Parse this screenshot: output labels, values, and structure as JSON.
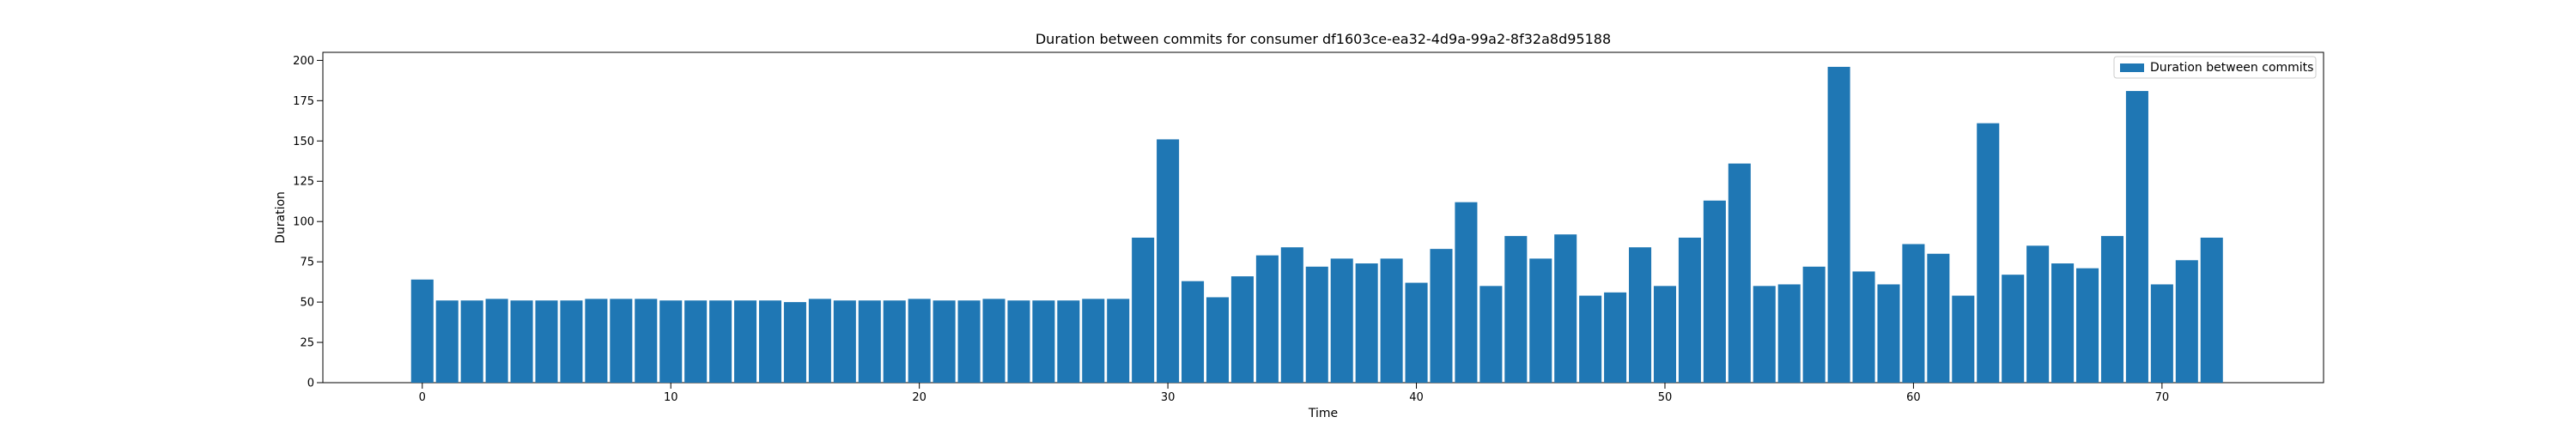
{
  "chart_data": {
    "type": "bar",
    "title": "Duration between commits for consumer df1603ce-ea32-4d9a-99a2-8f32a8d95188",
    "xlabel": "Time",
    "ylabel": "Duration",
    "xlim": [
      -4,
      76.5
    ],
    "ylim": [
      0,
      205
    ],
    "xticks": [
      0,
      10,
      20,
      30,
      40,
      50,
      60,
      70
    ],
    "yticks": [
      0,
      25,
      50,
      75,
      100,
      125,
      150,
      175,
      200
    ],
    "grid": false,
    "legend": {
      "placement": "top-right",
      "entries": [
        "Duration between commits"
      ]
    },
    "series": [
      {
        "name": "Duration between commits",
        "color": "#1f77b4",
        "x": [
          0,
          1,
          2,
          3,
          4,
          5,
          6,
          7,
          8,
          9,
          10,
          11,
          12,
          13,
          14,
          15,
          16,
          17,
          18,
          19,
          20,
          21,
          22,
          23,
          24,
          25,
          26,
          27,
          28,
          29,
          30,
          31,
          32,
          33,
          34,
          35,
          36,
          37,
          38,
          39,
          40,
          41,
          42,
          43,
          44,
          45,
          46,
          47,
          48,
          49,
          50,
          51,
          52,
          53,
          54,
          55,
          56,
          57,
          58,
          59,
          60,
          61,
          62,
          63,
          64,
          65,
          66,
          67,
          68,
          69,
          70,
          71,
          72
        ],
        "values": [
          64,
          51,
          51,
          52,
          51,
          51,
          51,
          52,
          52,
          52,
          51,
          51,
          51,
          51,
          51,
          50,
          52,
          51,
          51,
          51,
          52,
          51,
          51,
          52,
          51,
          51,
          51,
          52,
          52,
          90,
          151,
          63,
          53,
          66,
          79,
          84,
          72,
          77,
          74,
          77,
          62,
          83,
          112,
          60,
          91,
          77,
          92,
          54,
          56,
          84,
          60,
          90,
          113,
          136,
          60,
          61,
          72,
          196,
          69,
          61,
          86,
          80,
          54,
          161,
          67,
          85,
          74,
          71,
          91,
          181,
          61,
          76,
          90
        ]
      }
    ]
  }
}
